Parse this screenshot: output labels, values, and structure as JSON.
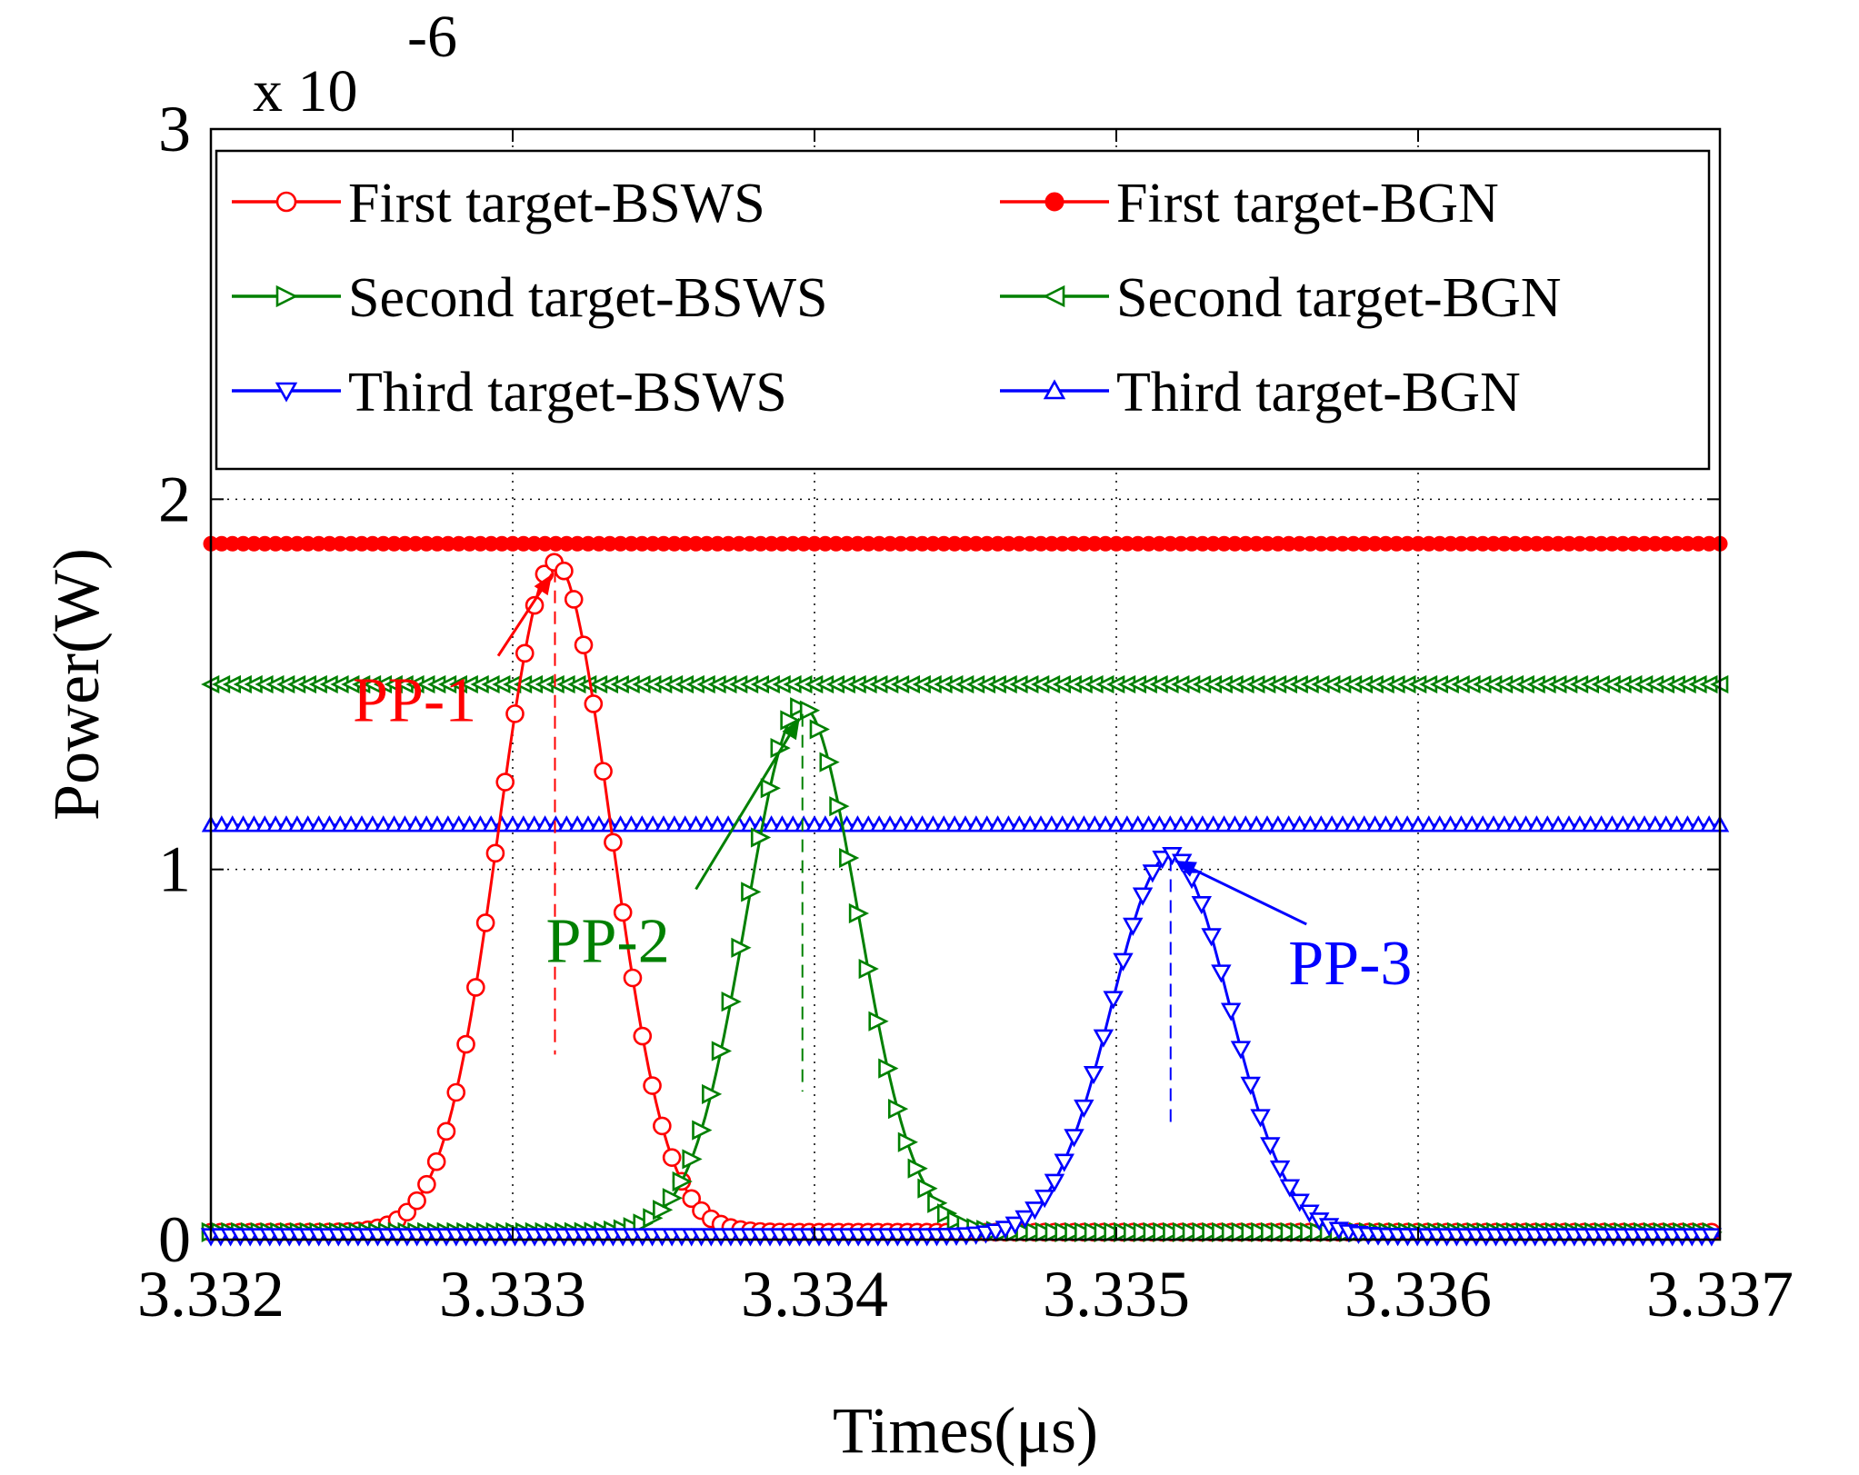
{
  "chart_data": {
    "type": "line",
    "title": "",
    "xlabel": "Times(μs)",
    "ylabel": "Power(W)",
    "y_multiplier_label": "x 10",
    "y_multiplier_exponent": "-6",
    "xlim": [
      3.332,
      3.337
    ],
    "ylim": [
      0,
      3
    ],
    "x_ticks": [
      3.332,
      3.333,
      3.334,
      3.335,
      3.336,
      3.337
    ],
    "x_tick_labels": [
      "3.332",
      "3.333",
      "3.334",
      "3.335",
      "3.336",
      "3.337"
    ],
    "y_ticks": [
      0,
      1,
      2,
      3
    ],
    "y_tick_labels": [
      "0",
      "1",
      "2",
      "3"
    ],
    "grid": true,
    "legend_position": "top",
    "series": [
      {
        "name": "First target-BSWS",
        "kind": "gaussian",
        "center": 3.33314,
        "amplitude": 1.81,
        "sigma": 0.000185,
        "baseline": 0.02,
        "color": "#ff0000",
        "marker": "circle-open"
      },
      {
        "name": "First target-BGN",
        "kind": "constant",
        "value": 1.88,
        "color": "#ff0000",
        "marker": "circle-filled"
      },
      {
        "name": "Second target-BSWS",
        "kind": "gaussian",
        "center": 3.33396,
        "amplitude": 1.42,
        "sigma": 0.000185,
        "baseline": 0.02,
        "color": "#008000",
        "marker": "triangle-right"
      },
      {
        "name": "Second target-BGN",
        "kind": "constant",
        "value": 1.5,
        "color": "#008000",
        "marker": "triangle-left"
      },
      {
        "name": "Third target-BSWS",
        "kind": "gaussian",
        "center": 3.33518,
        "amplitude": 1.03,
        "sigma": 0.000195,
        "baseline": 0.01,
        "color": "#0000ff",
        "marker": "triangle-down"
      },
      {
        "name": "Third target-BGN",
        "kind": "constant",
        "value": 1.12,
        "color": "#0000ff",
        "marker": "triangle-up"
      }
    ],
    "annotations": [
      {
        "text": "PP-1",
        "color": "#ff0000",
        "peak_x": 3.33314,
        "peak_y": 1.81,
        "label_x": 3.33247,
        "label_y": 1.4,
        "dash_bottom_y": 0.5
      },
      {
        "text": "PP-2",
        "color": "#008000",
        "peak_x": 3.33396,
        "peak_y": 1.42,
        "label_x": 3.33311,
        "label_y": 0.75,
        "dash_bottom_y": 0.4
      },
      {
        "text": "PP-3",
        "color": "#0000ff",
        "peak_x": 3.33518,
        "peak_y": 1.03,
        "label_x": 3.33557,
        "label_y": 0.69,
        "dash_bottom_y": 0.3
      }
    ]
  }
}
